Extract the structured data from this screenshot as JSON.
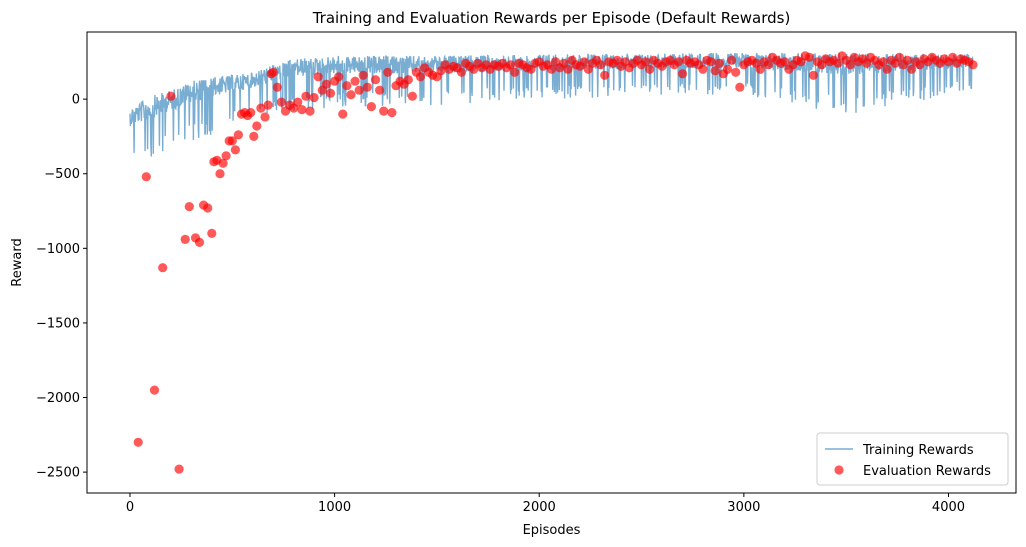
{
  "chart_data": {
    "type": "line",
    "title": "Training and Evaluation Rewards per Episode (Default Rewards)",
    "xlabel": "Episodes",
    "ylabel": "Reward",
    "xlim": [
      -210,
      4330
    ],
    "ylim": [
      -2640,
      450
    ],
    "xticks": [
      0,
      1000,
      2000,
      3000,
      4000
    ],
    "xtick_labels": [
      "0",
      "1000",
      "2000",
      "3000",
      "4000"
    ],
    "yticks": [
      -2500,
      -2000,
      -1500,
      -1000,
      -500,
      0
    ],
    "ytick_labels": [
      "−2500",
      "−2000",
      "−1500",
      "−1000",
      "−500",
      "0"
    ],
    "grid": false,
    "legend_position": "lower-right",
    "series": [
      {
        "name": "Training Rewards",
        "kind": "line",
        "color": "#1f77b4",
        "alpha": 0.6,
        "points_per_episode_range": [
          0,
          4120
        ],
        "envelope": [
          {
            "x": 0,
            "low": -410,
            "high": -60
          },
          {
            "x": 100,
            "low": -420,
            "high": 20
          },
          {
            "x": 200,
            "low": -330,
            "high": 60
          },
          {
            "x": 300,
            "low": -300,
            "high": 120
          },
          {
            "x": 400,
            "low": -240,
            "high": 150
          },
          {
            "x": 500,
            "low": -160,
            "high": 160
          },
          {
            "x": 600,
            "low": -120,
            "high": 180
          },
          {
            "x": 700,
            "low": -100,
            "high": 230
          },
          {
            "x": 800,
            "low": -80,
            "high": 270
          },
          {
            "x": 1000,
            "low": -60,
            "high": 290
          },
          {
            "x": 1500,
            "low": -40,
            "high": 290
          },
          {
            "x": 2000,
            "low": 0,
            "high": 300
          },
          {
            "x": 3000,
            "low": 30,
            "high": 310
          },
          {
            "x": 3500,
            "low": -110,
            "high": 310
          },
          {
            "x": 4120,
            "low": 60,
            "high": 300
          }
        ]
      },
      {
        "name": "Evaluation Rewards",
        "kind": "scatter",
        "color": "#ff0000",
        "alpha": 0.65,
        "points": [
          [
            40,
            -2300
          ],
          [
            80,
            -520
          ],
          [
            120,
            -1950
          ],
          [
            160,
            -1130
          ],
          [
            200,
            20
          ],
          [
            240,
            -2480
          ],
          [
            270,
            -940
          ],
          [
            290,
            -720
          ],
          [
            320,
            -930
          ],
          [
            340,
            -960
          ],
          [
            360,
            -710
          ],
          [
            380,
            -730
          ],
          [
            400,
            -900
          ],
          [
            410,
            -420
          ],
          [
            425,
            -410
          ],
          [
            440,
            -500
          ],
          [
            455,
            -430
          ],
          [
            470,
            -380
          ],
          [
            485,
            -280
          ],
          [
            500,
            -280
          ],
          [
            515,
            -340
          ],
          [
            530,
            -240
          ],
          [
            545,
            -100
          ],
          [
            560,
            -90
          ],
          [
            575,
            -110
          ],
          [
            590,
            -90
          ],
          [
            605,
            -250
          ],
          [
            620,
            -180
          ],
          [
            640,
            -60
          ],
          [
            660,
            -120
          ],
          [
            675,
            -40
          ],
          [
            690,
            170
          ],
          [
            700,
            180
          ],
          [
            720,
            80
          ],
          [
            740,
            -20
          ],
          [
            760,
            -80
          ],
          [
            780,
            -40
          ],
          [
            800,
            -60
          ],
          [
            820,
            -20
          ],
          [
            840,
            -70
          ],
          [
            860,
            20
          ],
          [
            880,
            -80
          ],
          [
            900,
            10
          ],
          [
            920,
            150
          ],
          [
            940,
            60
          ],
          [
            960,
            100
          ],
          [
            980,
            40
          ],
          [
            1000,
            120
          ],
          [
            1020,
            150
          ],
          [
            1040,
            -100
          ],
          [
            1060,
            90
          ],
          [
            1080,
            30
          ],
          [
            1100,
            120
          ],
          [
            1120,
            60
          ],
          [
            1140,
            160
          ],
          [
            1160,
            80
          ],
          [
            1180,
            -50
          ],
          [
            1200,
            130
          ],
          [
            1220,
            60
          ],
          [
            1240,
            -80
          ],
          [
            1260,
            180
          ],
          [
            1280,
            -90
          ],
          [
            1300,
            90
          ],
          [
            1320,
            120
          ],
          [
            1340,
            100
          ],
          [
            1360,
            130
          ],
          [
            1380,
            20
          ],
          [
            1400,
            180
          ],
          [
            1420,
            150
          ],
          [
            1440,
            210
          ],
          [
            1460,
            180
          ],
          [
            1480,
            160
          ],
          [
            1500,
            150
          ],
          [
            1520,
            190
          ],
          [
            1540,
            230
          ],
          [
            1560,
            200
          ],
          [
            1580,
            220
          ],
          [
            1600,
            210
          ],
          [
            1620,
            180
          ],
          [
            1640,
            240
          ],
          [
            1660,
            220
          ],
          [
            1680,
            200
          ],
          [
            1700,
            240
          ],
          [
            1720,
            210
          ],
          [
            1740,
            230
          ],
          [
            1760,
            200
          ],
          [
            1780,
            230
          ],
          [
            1800,
            220
          ],
          [
            1820,
            240
          ],
          [
            1840,
            210
          ],
          [
            1860,
            230
          ],
          [
            1880,
            180
          ],
          [
            1900,
            240
          ],
          [
            1920,
            230
          ],
          [
            1940,
            210
          ],
          [
            1960,
            200
          ],
          [
            1980,
            240
          ],
          [
            2000,
            250
          ],
          [
            2020,
            220
          ],
          [
            2040,
            230
          ],
          [
            2060,
            200
          ],
          [
            2080,
            250
          ],
          [
            2100,
            210
          ],
          [
            2120,
            240
          ],
          [
            2140,
            200
          ],
          [
            2160,
            260
          ],
          [
            2180,
            230
          ],
          [
            2200,
            220
          ],
          [
            2220,
            250
          ],
          [
            2240,
            200
          ],
          [
            2260,
            240
          ],
          [
            2280,
            260
          ],
          [
            2300,
            230
          ],
          [
            2320,
            160
          ],
          [
            2340,
            250
          ],
          [
            2360,
            240
          ],
          [
            2380,
            260
          ],
          [
            2400,
            220
          ],
          [
            2420,
            250
          ],
          [
            2440,
            210
          ],
          [
            2460,
            240
          ],
          [
            2480,
            260
          ],
          [
            2500,
            230
          ],
          [
            2520,
            250
          ],
          [
            2540,
            200
          ],
          [
            2560,
            260
          ],
          [
            2580,
            240
          ],
          [
            2600,
            220
          ],
          [
            2620,
            250
          ],
          [
            2640,
            260
          ],
          [
            2660,
            230
          ],
          [
            2680,
            250
          ],
          [
            2700,
            170
          ],
          [
            2720,
            260
          ],
          [
            2740,
            240
          ],
          [
            2760,
            250
          ],
          [
            2780,
            230
          ],
          [
            2800,
            200
          ],
          [
            2820,
            260
          ],
          [
            2840,
            250
          ],
          [
            2860,
            190
          ],
          [
            2880,
            240
          ],
          [
            2900,
            170
          ],
          [
            2920,
            200
          ],
          [
            2940,
            260
          ],
          [
            2960,
            180
          ],
          [
            2980,
            80
          ],
          [
            3000,
            230
          ],
          [
            3020,
            250
          ],
          [
            3040,
            260
          ],
          [
            3060,
            240
          ],
          [
            3080,
            200
          ],
          [
            3100,
            250
          ],
          [
            3120,
            230
          ],
          [
            3140,
            280
          ],
          [
            3160,
            260
          ],
          [
            3180,
            240
          ],
          [
            3200,
            250
          ],
          [
            3220,
            200
          ],
          [
            3240,
            230
          ],
          [
            3260,
            260
          ],
          [
            3280,
            250
          ],
          [
            3300,
            290
          ],
          [
            3320,
            280
          ],
          [
            3340,
            160
          ],
          [
            3360,
            250
          ],
          [
            3380,
            230
          ],
          [
            3400,
            270
          ],
          [
            3420,
            250
          ],
          [
            3440,
            260
          ],
          [
            3460,
            240
          ],
          [
            3480,
            290
          ],
          [
            3500,
            260
          ],
          [
            3520,
            230
          ],
          [
            3540,
            280
          ],
          [
            3560,
            250
          ],
          [
            3580,
            270
          ],
          [
            3600,
            240
          ],
          [
            3620,
            280
          ],
          [
            3640,
            260
          ],
          [
            3660,
            230
          ],
          [
            3680,
            250
          ],
          [
            3700,
            200
          ],
          [
            3720,
            260
          ],
          [
            3740,
            240
          ],
          [
            3760,
            280
          ],
          [
            3780,
            230
          ],
          [
            3800,
            260
          ],
          [
            3820,
            200
          ],
          [
            3840,
            250
          ],
          [
            3860,
            230
          ],
          [
            3880,
            270
          ],
          [
            3900,
            250
          ],
          [
            3920,
            280
          ],
          [
            3940,
            260
          ],
          [
            3960,
            240
          ],
          [
            3980,
            270
          ],
          [
            4000,
            250
          ],
          [
            4020,
            280
          ],
          [
            4040,
            240
          ],
          [
            4060,
            270
          ],
          [
            4080,
            260
          ],
          [
            4100,
            250
          ],
          [
            4120,
            230
          ]
        ]
      }
    ]
  }
}
